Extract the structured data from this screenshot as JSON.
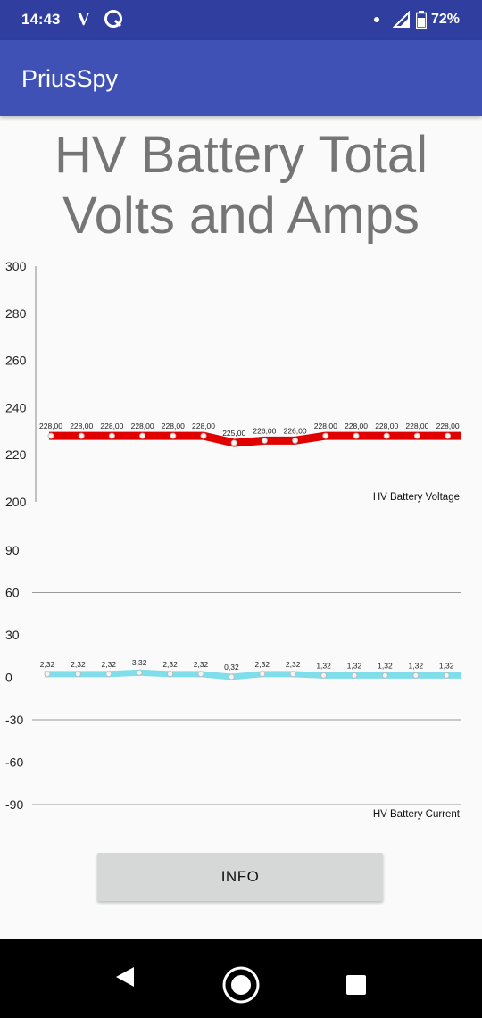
{
  "status_bar": {
    "time": "14:43",
    "battery_percent": "72%",
    "icons": [
      "v-icon",
      "qualcomm-icon",
      "dot-icon",
      "signal-icon",
      "battery-icon"
    ]
  },
  "app_bar": {
    "title": "PriusSpy"
  },
  "page": {
    "title_line1": "HV Battery Total",
    "title_line2": "Volts and Amps"
  },
  "chart_data": [
    {
      "type": "line",
      "name": "HV Battery Voltage",
      "legend": "HV Battery Voltage",
      "color": "#e00000",
      "ylim": [
        200,
        300
      ],
      "yticks": [
        300,
        280,
        260,
        240,
        220,
        200
      ],
      "grid": false,
      "legend_position": "bottom-right",
      "values": [
        228,
        228,
        228,
        228,
        228,
        228,
        225,
        226,
        226,
        228,
        228,
        228,
        228,
        228
      ],
      "value_labels": [
        "228,00",
        "228,00",
        "228,00",
        "228,00",
        "228,00",
        "228,00",
        "225,00",
        "226,00",
        "226,00",
        "228,00",
        "228,00",
        "228,00",
        "228,00",
        "228,00"
      ]
    },
    {
      "type": "line",
      "name": "HV Battery Current",
      "legend": "HV Battery Current",
      "color": "#80deea",
      "ylim": [
        -90,
        90
      ],
      "yticks": [
        90,
        60,
        30,
        0,
        -30,
        -60,
        -90
      ],
      "grid": true,
      "legend_position": "bottom-right",
      "values": [
        2.32,
        2.32,
        2.32,
        3.32,
        2.32,
        2.32,
        0.32,
        2.32,
        2.32,
        1.32,
        1.32,
        1.32,
        1.32,
        1.32
      ],
      "value_labels": [
        "2,32",
        "2,32",
        "2,32",
        "3,32",
        "2,32",
        "2,32",
        "0,32",
        "2,32",
        "2,32",
        "1,32",
        "1,32",
        "1,32",
        "1,32",
        "1,32"
      ]
    }
  ],
  "buttons": {
    "info": "INFO"
  }
}
